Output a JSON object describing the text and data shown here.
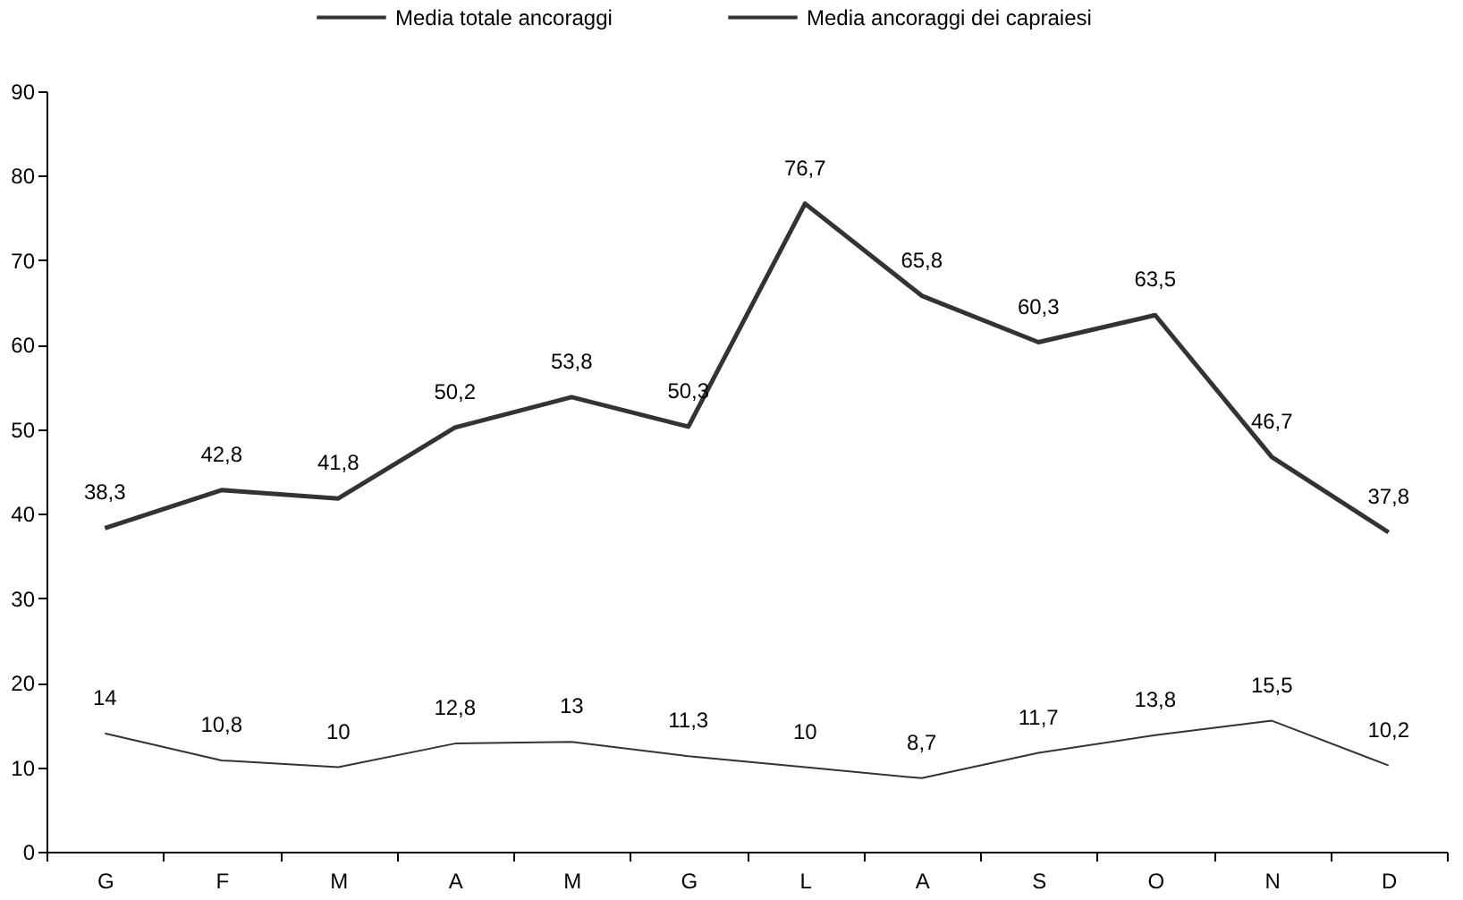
{
  "chart_data": {
    "type": "line",
    "categories": [
      "G",
      "F",
      "M",
      "A",
      "M",
      "G",
      "L",
      "A",
      "S",
      "O",
      "N",
      "D"
    ],
    "series": [
      {
        "name": "Media totale ancoraggi",
        "color": "#333333",
        "values": [
          38.3,
          42.8,
          41.8,
          50.2,
          53.8,
          50.3,
          76.7,
          65.8,
          60.3,
          63.5,
          46.7,
          37.8
        ],
        "value_labels": [
          "38,3",
          "42,8",
          "41,8",
          "50,2",
          "53,8",
          "50,3",
          "76,7",
          "65,8",
          "60,3",
          "63,5",
          "46,7",
          "37,8"
        ]
      },
      {
        "name": "Media ancoraggi dei capraiesi",
        "color": "#333333",
        "values": [
          14,
          10.8,
          10,
          12.8,
          13,
          11.3,
          10,
          8.7,
          11.7,
          13.8,
          15.5,
          10.2
        ],
        "value_labels": [
          "14",
          "10,8",
          "10",
          "12,8",
          "13",
          "11,3",
          "10",
          "8,7",
          "11,7",
          "13,8",
          "15,5",
          "10,2"
        ]
      }
    ],
    "ylim": [
      0,
      90
    ],
    "yticks": [
      0,
      10,
      20,
      30,
      40,
      50,
      60,
      70,
      80,
      90
    ],
    "grid": false,
    "legend": "top",
    "marker": "none",
    "line_style": "solid"
  }
}
